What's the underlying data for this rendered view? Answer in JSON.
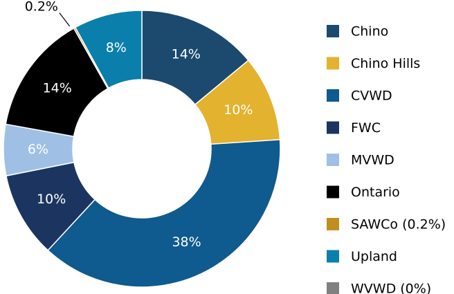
{
  "chart_data": {
    "type": "donut",
    "categories": [
      "Chino",
      "Chino Hills",
      "CVWD",
      "FWC",
      "MVWD",
      "Ontario",
      "SAWCo (0.2%)",
      "Upland",
      "WVWD (0%)"
    ],
    "values": [
      14,
      10,
      38,
      10,
      6,
      14,
      0.2,
      8,
      0
    ],
    "value_labels": [
      "14%",
      "10%",
      "38%",
      "10%",
      "6%",
      "14%",
      "0.2%",
      "8%",
      null
    ],
    "colors": [
      "#1b4a6e",
      "#e3b22e",
      "#0f5a8e",
      "#1c3560",
      "#9fc0e4",
      "#000000",
      "#c08f1e",
      "#0a7fab",
      "#808080"
    ],
    "legend": "right"
  }
}
